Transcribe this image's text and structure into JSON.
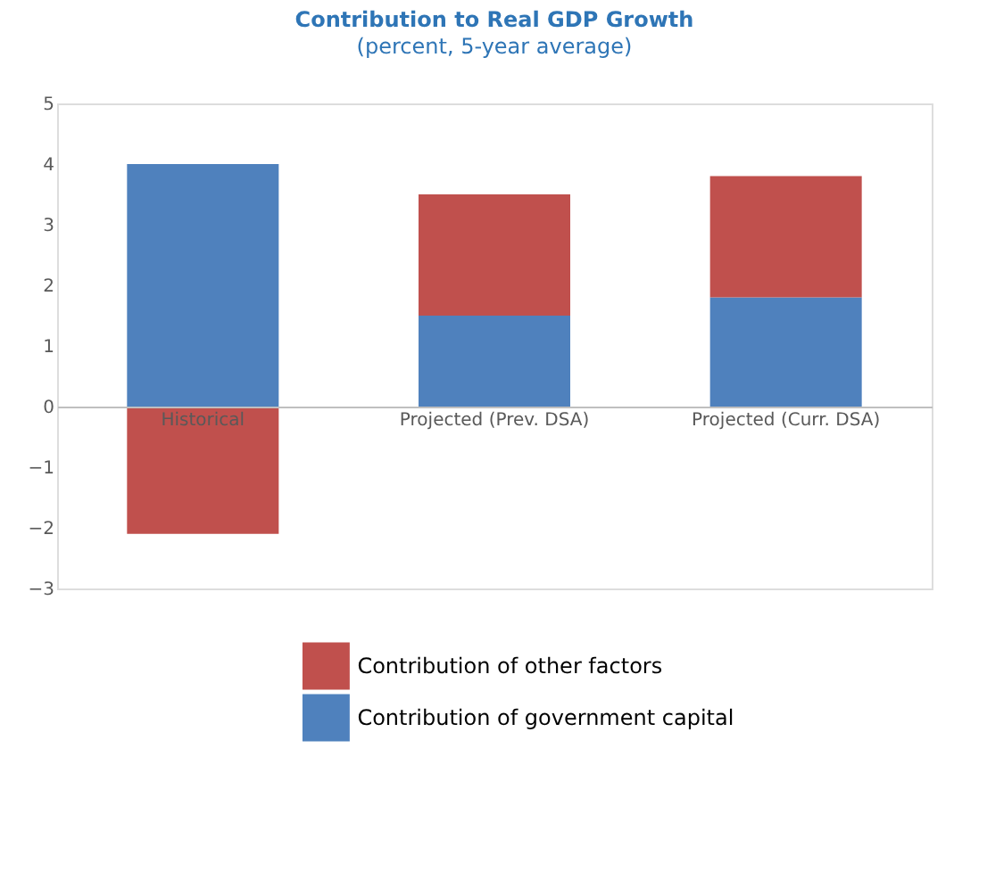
{
  "chart_data": {
    "type": "bar",
    "stacked": true,
    "title": "Contribution to Real GDP Growth",
    "subtitle": "(percent, 5-year average)",
    "categories": [
      "Historical",
      "Projected (Prev. DSA)",
      "Projected (Curr. DSA)"
    ],
    "series": [
      {
        "name": "Contribution of government capital",
        "color": "#4f81bd",
        "values": [
          4.0,
          1.5,
          1.8
        ]
      },
      {
        "name": "Contribution of other factors",
        "color": "#c0504d",
        "values": [
          -2.1,
          2.0,
          2.0
        ]
      }
    ],
    "ylim": [
      -3,
      5
    ],
    "yticks": [
      -3,
      -2,
      -1,
      0,
      1,
      2,
      3,
      4,
      5
    ],
    "grid": false,
    "legend": "bottom"
  }
}
